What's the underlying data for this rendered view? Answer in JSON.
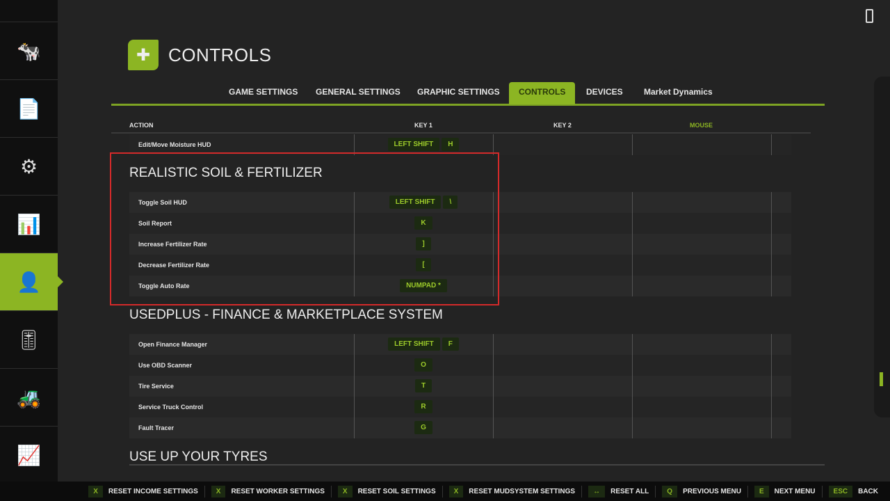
{
  "sidebar": {
    "items": [
      {
        "icon": "cow-icon"
      },
      {
        "icon": "contracts-icon"
      },
      {
        "icon": "production-icon"
      },
      {
        "icon": "statistics-icon"
      },
      {
        "icon": "player-settings-icon",
        "active": true
      },
      {
        "icon": "sliders-icon"
      },
      {
        "icon": "excavator-icon"
      },
      {
        "icon": "chart-icon"
      }
    ]
  },
  "header": {
    "title": "CONTROLS",
    "icon": "controller-icon"
  },
  "tabs": [
    "GAME SETTINGS",
    "GENERAL SETTINGS",
    "GRAPHIC SETTINGS",
    "CONTROLS",
    "DEVICES",
    "Market Dynamics"
  ],
  "table": {
    "headers": [
      "ACTION",
      "KEY 1",
      "KEY 2",
      "MOUSE"
    ]
  },
  "rows_top": [
    {
      "action": "Edit/Move Moisture HUD",
      "keys": [
        "LEFT SHIFT",
        "H"
      ]
    }
  ],
  "sections": [
    {
      "title": "REALISTIC SOIL & FERTILIZER",
      "rows": [
        {
          "action": "Toggle Soil HUD",
          "keys": [
            "LEFT SHIFT",
            "\\"
          ]
        },
        {
          "action": "Soil Report",
          "keys": [
            "K"
          ]
        },
        {
          "action": "Increase Fertilizer Rate",
          "keys": [
            "]"
          ]
        },
        {
          "action": "Decrease Fertilizer Rate",
          "keys": [
            "["
          ]
        },
        {
          "action": "Toggle Auto Rate",
          "keys": [
            "NUMPAD *"
          ]
        }
      ]
    },
    {
      "title": "USEDPLUS - FINANCE & MARKETPLACE SYSTEM",
      "rows": [
        {
          "action": "Open Finance Manager",
          "keys": [
            "LEFT SHIFT",
            "F"
          ]
        },
        {
          "action": "Use OBD Scanner",
          "keys": [
            "O"
          ]
        },
        {
          "action": "Tire Service",
          "keys": [
            "T"
          ]
        },
        {
          "action": "Service Truck Control",
          "keys": [
            "R"
          ]
        },
        {
          "action": "Fault Tracer",
          "keys": [
            "G"
          ]
        }
      ]
    },
    {
      "title": "USE UP YOUR TYRES",
      "rows": []
    }
  ],
  "bottom": [
    {
      "key": "X",
      "label": "RESET INCOME SETTINGS"
    },
    {
      "key": "X",
      "label": "RESET WORKER SETTINGS"
    },
    {
      "key": "X",
      "label": "RESET SOIL SETTINGS"
    },
    {
      "key": "X",
      "label": "RESET MUDSYSTEM SETTINGS"
    },
    {
      "key": "↔",
      "label": "RESET ALL"
    },
    {
      "key": "Q",
      "label": "PREVIOUS MENU"
    },
    {
      "key": "E",
      "label": "NEXT MENU"
    },
    {
      "key": "ESC",
      "label": "BACK"
    }
  ],
  "colors": {
    "accent": "#8cb523",
    "highlight_box": "#d42a2a"
  }
}
